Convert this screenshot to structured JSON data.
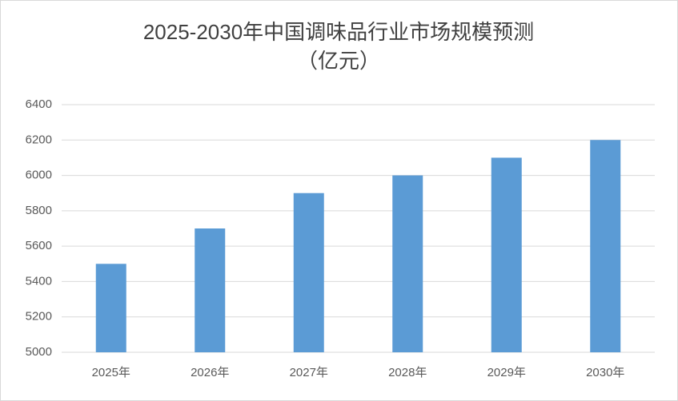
{
  "chart_data": {
    "type": "bar",
    "title": "2025-2030年中国调味品行业市场规模预测",
    "subtitle": "（亿元）",
    "categories": [
      "2025年",
      "2026年",
      "2027年",
      "2028年",
      "2029年",
      "2030年"
    ],
    "values": [
      5500,
      5700,
      5900,
      6000,
      6100,
      6200
    ],
    "color": "#5b9bd5",
    "ylim": [
      5000,
      6400
    ],
    "yticks": [
      5000,
      5200,
      5400,
      5600,
      5800,
      6000,
      6200,
      6400
    ],
    "grid": true
  }
}
